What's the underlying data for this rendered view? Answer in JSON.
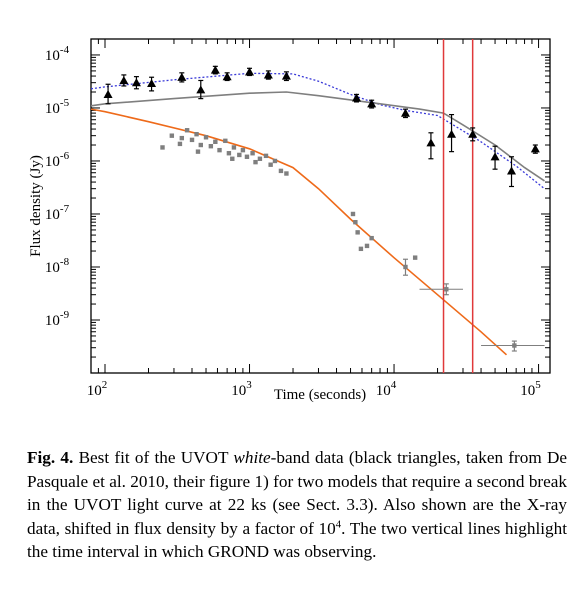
{
  "chart_data": {
    "type": "scatter",
    "xlabel": "Time (seconds)",
    "ylabel": "Flux density (Jy)",
    "x_scale": "log",
    "y_scale": "log",
    "xlim": [
      80,
      120000
    ],
    "ylim": [
      1e-10,
      0.0002
    ],
    "x_ticks": [
      {
        "value": 100,
        "base": "10",
        "exp": "2"
      },
      {
        "value": 1000,
        "base": "10",
        "exp": "3"
      },
      {
        "value": 10000,
        "base": "10",
        "exp": "4"
      },
      {
        "value": 100000,
        "base": "10",
        "exp": "5"
      }
    ],
    "y_ticks": [
      {
        "value": 0.0001,
        "base": "10",
        "exp": "-4"
      },
      {
        "value": 1e-05,
        "base": "10",
        "exp": "-5"
      },
      {
        "value": 1e-06,
        "base": "10",
        "exp": "-6"
      },
      {
        "value": 1e-07,
        "base": "10",
        "exp": "-7"
      },
      {
        "value": 1e-08,
        "base": "10",
        "exp": "-8"
      },
      {
        "value": 1e-09,
        "base": "10",
        "exp": "-9"
      }
    ],
    "grid": false,
    "vertical_lines": {
      "x": [
        22000,
        35000
      ],
      "color": "#e0393a"
    },
    "series": [
      {
        "marker": "triangle",
        "color": "#000000",
        "points": [
          {
            "x": 105,
            "y": 1.8e-05,
            "lo": 1.2e-05,
            "hi": 2.8e-05
          },
          {
            "x": 135,
            "y": 3.3e-05,
            "lo": 2.6e-05,
            "hi": 4.2e-05
          },
          {
            "x": 165,
            "y": 3e-05,
            "lo": 2.3e-05,
            "hi": 3.9e-05
          },
          {
            "x": 210,
            "y": 2.9e-05,
            "lo": 2.1e-05,
            "hi": 3.8e-05
          },
          {
            "x": 340,
            "y": 3.8e-05,
            "lo": 3.1e-05,
            "hi": 4.6e-05
          },
          {
            "x": 460,
            "y": 2.2e-05,
            "lo": 1.5e-05,
            "hi": 3.3e-05
          },
          {
            "x": 580,
            "y": 5.2e-05,
            "lo": 4.4e-05,
            "hi": 6.1e-05
          },
          {
            "x": 700,
            "y": 3.9e-05,
            "lo": 3.3e-05,
            "hi": 4.6e-05
          },
          {
            "x": 1000,
            "y": 4.8e-05,
            "lo": 4.1e-05,
            "hi": 5.6e-05
          },
          {
            "x": 1350,
            "y": 4.2e-05,
            "lo": 3.5e-05,
            "hi": 5e-05
          },
          {
            "x": 1800,
            "y": 4e-05,
            "lo": 3.3e-05,
            "hi": 4.8e-05
          },
          {
            "x": 5500,
            "y": 1.55e-05,
            "lo": 1.3e-05,
            "hi": 1.8e-05
          },
          {
            "x": 7000,
            "y": 1.2e-05,
            "lo": 1e-05,
            "hi": 1.4e-05
          },
          {
            "x": 12000,
            "y": 8e-06,
            "lo": 6.6e-06,
            "hi": 9.5e-06
          },
          {
            "x": 18000,
            "y": 2.2e-06,
            "lo": 1.1e-06,
            "hi": 3.4e-06
          },
          {
            "x": 25000,
            "y": 3.2e-06,
            "lo": 1.5e-06,
            "hi": 7.5e-06
          },
          {
            "x": 35000,
            "y": 3.2e-06,
            "lo": 2.4e-06,
            "hi": 4.2e-06
          },
          {
            "x": 50000,
            "y": 1.2e-06,
            "lo": 7e-07,
            "hi": 1.9e-06
          },
          {
            "x": 65000,
            "y": 6.5e-07,
            "lo": 3.3e-07,
            "hi": 1.2e-06
          },
          {
            "x": 95000,
            "y": 1.7e-06,
            "lo": 1.4e-06,
            "hi": 2e-06
          }
        ]
      },
      {
        "marker": "square",
        "color": "#7f7f7f",
        "points": [
          {
            "x": 290,
            "y": 3e-06
          },
          {
            "x": 340,
            "y": 2.7e-06
          },
          {
            "x": 370,
            "y": 3.8e-06
          },
          {
            "x": 330,
            "y": 2.1e-06
          },
          {
            "x": 400,
            "y": 2.5e-06
          },
          {
            "x": 430,
            "y": 3.2e-06
          },
          {
            "x": 460,
            "y": 2e-06
          },
          {
            "x": 500,
            "y": 2.8e-06
          },
          {
            "x": 540,
            "y": 1.9e-06
          },
          {
            "x": 580,
            "y": 2.3e-06
          },
          {
            "x": 620,
            "y": 1.6e-06
          },
          {
            "x": 680,
            "y": 2.4e-06
          },
          {
            "x": 720,
            "y": 1.4e-06
          },
          {
            "x": 780,
            "y": 1.8e-06
          },
          {
            "x": 850,
            "y": 1.3e-06
          },
          {
            "x": 900,
            "y": 1.6e-06
          },
          {
            "x": 960,
            "y": 1.2e-06
          },
          {
            "x": 1050,
            "y": 1.4e-06
          },
          {
            "x": 1100,
            "y": 9.5e-07
          },
          {
            "x": 1180,
            "y": 1.1e-06
          },
          {
            "x": 1300,
            "y": 1.25e-06
          },
          {
            "x": 1400,
            "y": 8.5e-07
          },
          {
            "x": 1500,
            "y": 1e-06
          },
          {
            "x": 1650,
            "y": 6.5e-07
          },
          {
            "x": 1800,
            "y": 5.8e-07
          },
          {
            "x": 250,
            "y": 1.8e-06
          },
          {
            "x": 440,
            "y": 1.5e-06
          },
          {
            "x": 760,
            "y": 1.1e-06
          },
          {
            "x": 5200,
            "y": 1e-07
          },
          {
            "x": 5400,
            "y": 7e-08
          },
          {
            "x": 5600,
            "y": 4.5e-08
          },
          {
            "x": 5900,
            "y": 2.2e-08
          },
          {
            "x": 6500,
            "y": 2.5e-08
          },
          {
            "x": 7000,
            "y": 3.5e-08
          },
          {
            "x": 12000,
            "y": 1e-08,
            "lo": 7e-09,
            "hi": 1.4e-08
          },
          {
            "x": 14000,
            "y": 1.5e-08
          },
          {
            "x": 23000,
            "y": 3.8e-09,
            "xlo": 15000,
            "xhi": 30000,
            "lo": 3e-09,
            "hi": 4.8e-09
          },
          {
            "x": 68000,
            "y": 3.3e-10,
            "xlo": 40000,
            "xhi": 110000,
            "lo": 2.6e-10,
            "hi": 4e-10
          }
        ]
      }
    ],
    "lines": [
      {
        "color": "#ee6a1a",
        "style": "solid",
        "points": [
          [
            80,
            9.5e-06
          ],
          [
            100,
            8.5e-06
          ],
          [
            200,
            5.5e-06
          ],
          [
            500,
            3e-06
          ],
          [
            1000,
            1.7e-06
          ],
          [
            2000,
            7.5e-07
          ],
          [
            3000,
            3e-07
          ],
          [
            5000,
            8e-08
          ],
          [
            10000,
            1.5e-08
          ],
          [
            20000,
            3e-09
          ],
          [
            40000,
            6e-10
          ],
          [
            60000,
            2.2e-10
          ]
        ]
      },
      {
        "color": "#3a3ad8",
        "style": "dotted",
        "points": [
          [
            80,
            2.3e-05
          ],
          [
            100,
            2.5e-05
          ],
          [
            300,
            3.4e-05
          ],
          [
            1000,
            4.5e-05
          ],
          [
            2000,
            4.4e-05
          ],
          [
            3000,
            3.2e-05
          ],
          [
            5000,
            1.8e-05
          ],
          [
            8000,
            1.15e-05
          ],
          [
            12000,
            9e-06
          ],
          [
            20000,
            7.2e-06
          ],
          [
            25000,
            5e-06
          ],
          [
            40000,
            2.3e-06
          ],
          [
            70000,
            8e-07
          ],
          [
            110000,
            3e-07
          ]
        ]
      },
      {
        "color": "#7f7f7f",
        "style": "solid",
        "points": [
          [
            80,
            1.1e-05
          ],
          [
            100,
            1.2e-05
          ],
          [
            300,
            1.5e-05
          ],
          [
            1000,
            1.9e-05
          ],
          [
            1800,
            2e-05
          ],
          [
            3000,
            1.7e-05
          ],
          [
            8000,
            1.2e-05
          ],
          [
            15000,
            9.5e-06
          ],
          [
            22000,
            8e-06
          ],
          [
            30000,
            4.8e-06
          ],
          [
            50000,
            2e-06
          ],
          [
            80000,
            7.5e-07
          ],
          [
            110000,
            4.2e-07
          ]
        ]
      }
    ]
  },
  "caption": {
    "label": "Fig. 4.",
    "text_a": " Best fit of the UVOT ",
    "emph": "white",
    "text_b": "-band data (black triangles, taken from De Pasquale et al. 2010, their figure 1) for two models that require a second break in the UVOT light curve at 22 ks (see Sect. 3.3). Also shown are the X-ray data, shifted in flux density by a factor of 10",
    "sup": "4",
    "text_c": ". The two vertical lines highlight the time interval in which GROND was observing."
  }
}
